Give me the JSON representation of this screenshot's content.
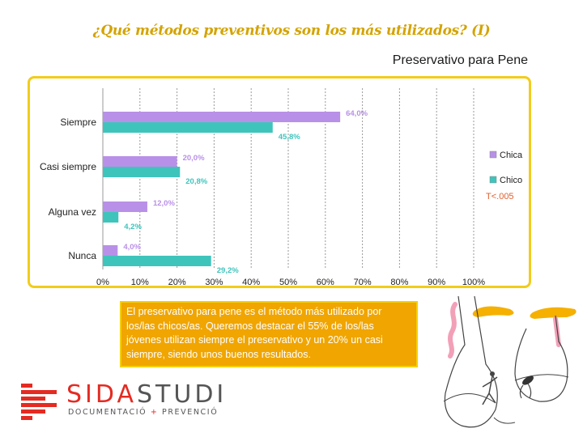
{
  "title": "¿Qué métodos preventivos son los más utilizados? (I)",
  "subtitle": "Preservativo para Pene",
  "chart_data": {
    "type": "bar",
    "orientation": "horizontal",
    "categories": [
      "Siempre",
      "Casi siempre",
      "Alguna vez",
      "Nunca"
    ],
    "series": [
      {
        "name": "Chica",
        "color": "#b990e8",
        "values": [
          64.0,
          20.0,
          12.0,
          4.0
        ],
        "labels": [
          "64,0%",
          "20,0%",
          "12,0%",
          "4,0%"
        ]
      },
      {
        "name": "Chico",
        "color": "#3fc4bc",
        "values": [
          45.8,
          20.8,
          4.2,
          29.2
        ],
        "labels": [
          "45,8%",
          "20,8%",
          "4,2%",
          "29,2%"
        ]
      }
    ],
    "xlim": [
      0,
      100
    ],
    "xticks": [
      "0%",
      "10%",
      "20%",
      "30%",
      "40%",
      "50%",
      "60%",
      "70%",
      "80%",
      "90%",
      "100%"
    ],
    "grid": "dashed vertical",
    "legend": "right",
    "annotation": "T<.005"
  },
  "description": "El preservativo para pene es el método más utilizado por los/las chicos/as. Queremos destacar el 55% de los/las jóvenes utilizan siempre el preservativo y un 20% un casi siempre, siendo unos buenos resultados.",
  "logo": {
    "name_a": "SIDA",
    "name_b": "STUDI",
    "tag_a": "DOCUMENTACIÓ",
    "tag_sep": " + ",
    "tag_b": "PREVENCIÓ"
  }
}
